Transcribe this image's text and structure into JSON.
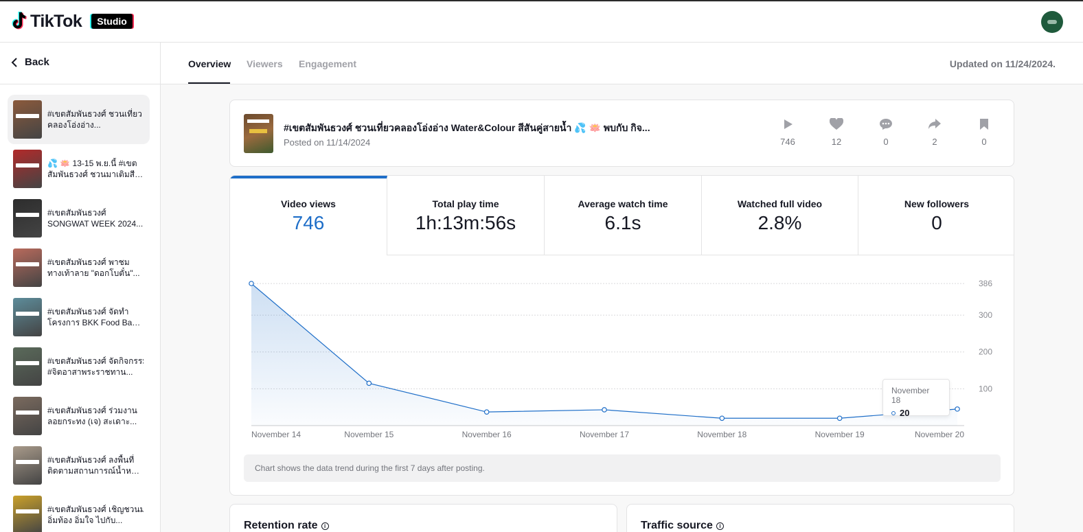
{
  "app": {
    "logo_text": "TikTok",
    "studio_label": "Studio"
  },
  "sidebar": {
    "back_label": "Back",
    "videos": [
      {
        "line1": "#เขตสัมพันธวงศ์ ชวนเที่ยว",
        "line2": "คลองโอ่งอ่าง...",
        "color": "#8b5a3c"
      },
      {
        "line1": "💦 🪷 13-15 พ.ย.นี้ #เขต",
        "line2": "สัมพันธวงศ์ ชวนมาเติมสีสั...",
        "color": "#b22a2a"
      },
      {
        "line1": "#เขตสัมพันธวงศ์",
        "line2": "SONGWAT WEEK 2024...",
        "color": "#2d2d2d"
      },
      {
        "line1": "#เขตสัมพันธวงศ์ พาชม",
        "line2": "ทางเท้าลาย \"ดอกโบตั๋น\"...",
        "color": "#b86a5c"
      },
      {
        "line1": "#เขตสัมพันธวงศ์ จัดทำ",
        "line2": "โครงการ BKK Food Bank...",
        "color": "#5d8c9a"
      },
      {
        "line1": "#เขตสัมพันธวงศ์ จัดกิจกรรม",
        "line2": "#จิตอาสาพระราชทาน...",
        "color": "#5a6a5a"
      },
      {
        "line1": "#เขตสัมพันธวงศ์ ร่วมงาน",
        "line2": "ลอยกระทง (เจ) สะเดาะ...",
        "color": "#7a6a5e"
      },
      {
        "line1": "#เขตสัมพันธวงศ์ ลงพื้นที่",
        "line2": "ติดตามสถานการณ์น้ำหนุน...",
        "color": "#a89a8a"
      },
      {
        "line1": "#เขตสัมพันธวงศ์ เชิญชวนมา",
        "line2": "อิ่มท้อง อิ่มใจ ไปกับ...",
        "color": "#c9a02a"
      }
    ]
  },
  "tabs": {
    "overview": "Overview",
    "viewers": "Viewers",
    "engagement": "Engagement"
  },
  "updated": "Updated on 11/24/2024.",
  "video": {
    "title": "#เขตสัมพันธวงศ์ ชวนเที่ยวคลองโอ่งอ่าง Water&Colour สีสันคู่สายน้ำ 💦 🪷 พบกับ กิจ...",
    "posted": "Posted on 11/14/2024",
    "stats": {
      "plays": "746",
      "likes": "12",
      "comments": "0",
      "shares": "2",
      "saves": "0"
    }
  },
  "metrics": [
    {
      "label": "Video views",
      "value": "746"
    },
    {
      "label": "Total play time",
      "value": "1h:13m:56s"
    },
    {
      "label": "Average watch time",
      "value": "6.1s"
    },
    {
      "label": "Watched full video",
      "value": "2.8%"
    },
    {
      "label": "New followers",
      "value": "0"
    }
  ],
  "chart_data": {
    "type": "area",
    "categories": [
      "November 14",
      "November 15",
      "November 16",
      "November 17",
      "November 18",
      "November 19",
      "November 20"
    ],
    "x": [
      "November 14",
      "November 15",
      "November 16",
      "November 17",
      "November 18",
      "November 19",
      "November 20"
    ],
    "values": [
      386,
      115,
      37,
      43,
      20,
      20,
      45
    ],
    "y_ticks": [
      "386",
      "300",
      "200",
      "100"
    ],
    "ylim": [
      0,
      386
    ],
    "grid": true,
    "color": "#1e6ec8"
  },
  "tooltip": {
    "date": "November 18",
    "value": "20"
  },
  "chart_note": "Chart shows the data trend during the first 7 days after posting.",
  "bottom": {
    "retention": "Retention rate",
    "traffic": "Traffic source"
  }
}
